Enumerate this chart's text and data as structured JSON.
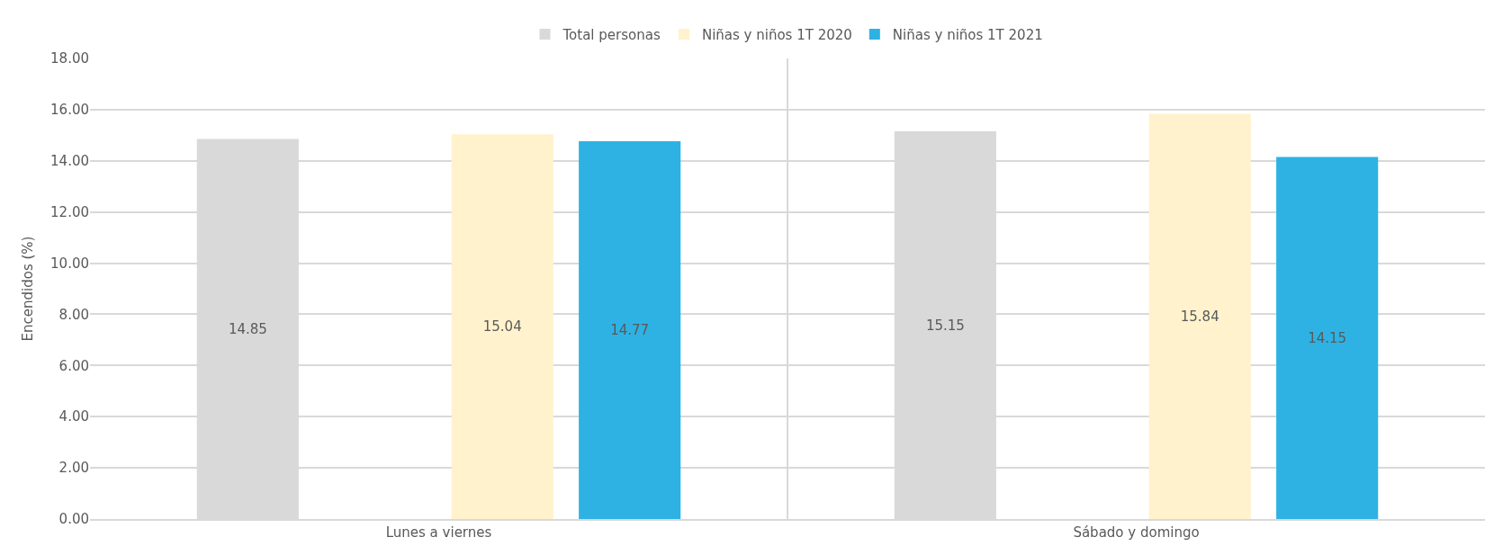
{
  "chart_data": {
    "type": "bar",
    "ylabel": "Encendidos (%)",
    "categories": [
      "Lunes a viernes",
      "Sábado y domingo"
    ],
    "series": [
      {
        "name": "Total personas",
        "color": "#d9d9d9",
        "values": [
          14.85,
          15.15
        ]
      },
      {
        "values": [
          null,
          null
        ]
      },
      {
        "name": "Niñas y niños 1T 2020",
        "color": "#fff2cc",
        "values": [
          15.04,
          15.84
        ]
      },
      {
        "name": "Niñas y niños 1T 2021",
        "color": "#2eb2e4",
        "values": [
          14.77,
          14.15
        ]
      }
    ],
    "ylim": [
      0,
      18
    ],
    "yticks": [
      {
        "value": 0,
        "label": "0.00"
      },
      {
        "value": 2,
        "label": "2.00"
      },
      {
        "value": 4,
        "label": "4.00"
      },
      {
        "value": 6,
        "label": "6.00"
      },
      {
        "value": 8,
        "label": "8.00"
      },
      {
        "value": 10,
        "label": "10.00"
      },
      {
        "value": 12,
        "label": "12.00"
      },
      {
        "value": 14,
        "label": "14.00"
      },
      {
        "value": 16,
        "label": "16.00"
      },
      {
        "value": 18,
        "label": "18.00"
      }
    ],
    "grid": true,
    "legend": "top",
    "data_labels": true
  }
}
